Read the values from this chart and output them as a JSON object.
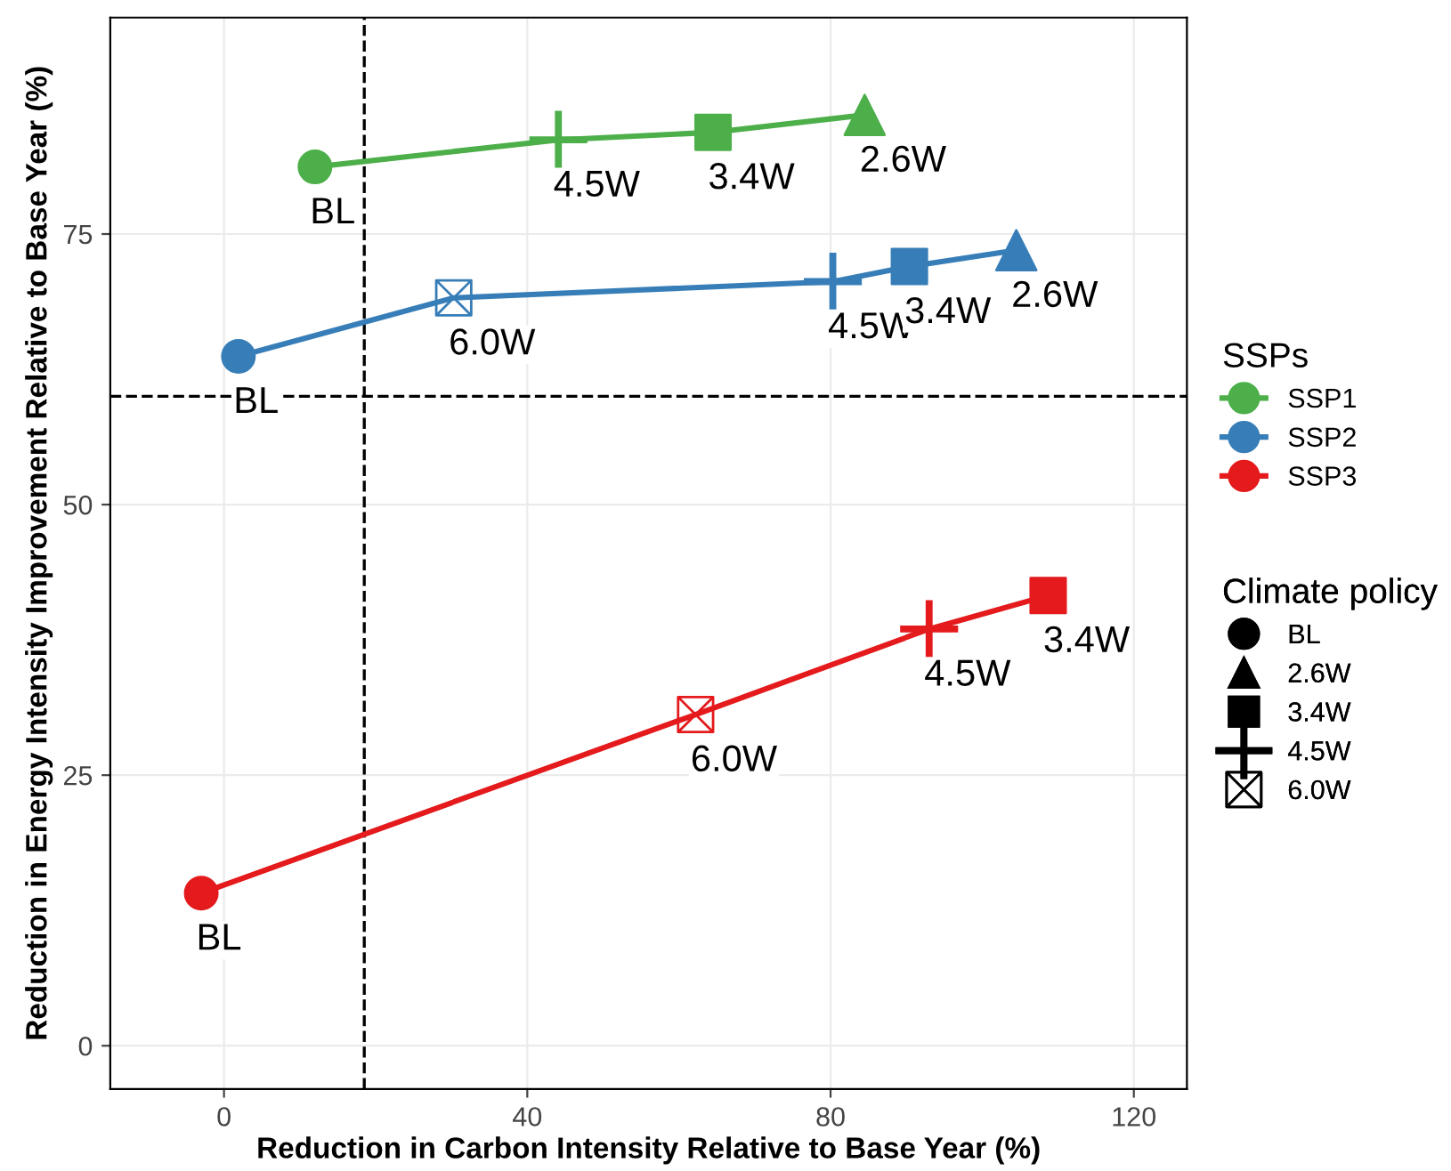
{
  "chart_data": {
    "type": "scatter",
    "xlabel": "Reduction in Carbon Intensity Relative to Base Year (%)",
    "ylabel": "Reduction in Energy Intensity Improvement Relative to Base Year (%)",
    "xlim": [
      -15,
      127
    ],
    "ylim": [
      -4,
      95
    ],
    "xticks": [
      0,
      40,
      80,
      120
    ],
    "yticks": [
      0,
      25,
      50,
      75
    ],
    "grid": true,
    "legend": "right",
    "legend_title": [
      "SSPs",
      "Climate policy"
    ],
    "series": [
      {
        "name": "SSP1",
        "type": "line",
        "color": "#4daf4a",
        "x": [
          12,
          44.1,
          64.5,
          84.5
        ],
        "values": [
          81.2,
          83.7,
          84.4,
          86.0
        ]
      },
      {
        "name": "SSP2",
        "type": "line",
        "color": "#377eb8",
        "x": [
          1.9,
          30.3,
          80.3,
          90.4,
          104.5
        ],
        "values": [
          63.7,
          69.1,
          70.6,
          72.0,
          73.5
        ]
      },
      {
        "name": "SSP3",
        "type": "line",
        "color": "#e41a1c",
        "x": [
          -3,
          62.2,
          93,
          108.7
        ],
        "values": [
          14.1,
          30.6,
          38.5,
          41.6
        ]
      },
      {
        "marker": "circle",
        "x": [
          12,
          1.9,
          -3
        ],
        "values": [
          81.2,
          63.7,
          14.1
        ],
        "colors": [
          "#4daf4a",
          "#377eb8",
          "#e41a1c"
        ]
      },
      {
        "marker": "triangle",
        "x": [
          84.5,
          104.5
        ],
        "values": [
          86.0,
          73.5
        ],
        "colors": [
          "#4daf4a",
          "#377eb8"
        ]
      },
      {
        "marker": "square",
        "x": [
          64.5,
          90.4,
          108.7
        ],
        "values": [
          84.4,
          72.0,
          41.6
        ],
        "colors": [
          "#4daf4a",
          "#377eb8",
          "#e41a1c"
        ]
      },
      {
        "marker": "cross",
        "x": [
          44.1,
          80.3,
          93
        ],
        "values": [
          83.7,
          70.6,
          38.5
        ],
        "colors": [
          "#4daf4a",
          "#377eb8",
          "#e41a1c"
        ]
      },
      {
        "x": [
          30.3,
          62.2
        ],
        "values": [
          69.1,
          30.6
        ],
        "colors": [
          "#377eb8",
          "#e41a1c"
        ]
      }
    ],
    "ref_lines": [
      {
        "axis": "x",
        "value": 18.5,
        "line_style": "dashed",
        "color": "#000000"
      },
      {
        "axis": "y",
        "value": 60,
        "line_style": "dashed",
        "color": "#000000"
      }
    ],
    "annotations": [
      {
        "text": "BL",
        "x": 12,
        "y": 81.2
      },
      {
        "text": "4.5W",
        "x": 44.1,
        "y": 83.7
      },
      {
        "text": "3.4W",
        "x": 64.5,
        "y": 84.4
      },
      {
        "text": "2.6W",
        "x": 84.5,
        "y": 86.0
      },
      {
        "text": "BL",
        "x": 1.9,
        "y": 63.7
      },
      {
        "text": "6.0W",
        "x": 30.3,
        "y": 69.1
      },
      {
        "text": "4.5W",
        "x": 80.3,
        "y": 70.6
      },
      {
        "text": "3.4W",
        "x": 90.4,
        "y": 72.0
      },
      {
        "text": "2.6W",
        "x": 104.5,
        "y": 73.5
      },
      {
        "text": "BL",
        "x": -3,
        "y": 14.1
      },
      {
        "text": "6.0W",
        "x": 62.2,
        "y": 30.6
      },
      {
        "text": "4.5W",
        "x": 93,
        "y": 38.5
      },
      {
        "text": "3.4W",
        "x": 108.7,
        "y": 41.6
      },
      "BL",
      "2.6W",
      "3.4W",
      "4.5W",
      "6.0W"
    ]
  }
}
